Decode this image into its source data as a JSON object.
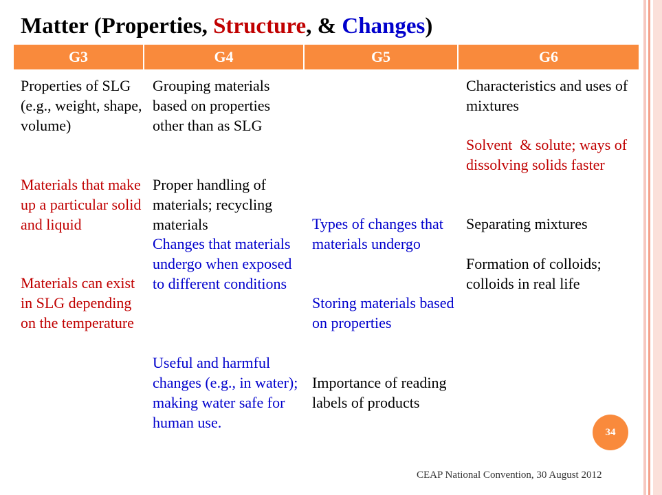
{
  "title": {
    "parts": [
      {
        "text": "Matter (Properties, ",
        "color": "#000000"
      },
      {
        "text": "Structure",
        "color": "#c00000"
      },
      {
        "text": ", & ",
        "color": "#000000"
      },
      {
        "text": "Changes",
        "color": "#0000cc"
      },
      {
        "text": ")",
        "color": "#000000"
      }
    ]
  },
  "table": {
    "headers": [
      "G3",
      "G4",
      "G5",
      "G6"
    ],
    "columns": [
      [
        {
          "text": "Properties of SLG (e.g., weight, shape, volume)",
          "color": "#000000"
        },
        {
          "text": "Materials that make up a particular solid and liquid",
          "color": "#c00000"
        },
        {
          "text": "Materials can exist in SLG depending on the temperature",
          "color": "#c00000"
        }
      ],
      [
        {
          "text": "Grouping materials based on properties other than as SLG",
          "color": "#000000"
        },
        {
          "text": "Proper handling of materials; recycling materials",
          "color": "#000000"
        },
        {
          "text": "Changes that materials undergo when exposed to different conditions",
          "color": "#0000cc"
        },
        {
          "text": "Useful and harmful changes (e.g., in water); making water safe for human use.",
          "color": "#0000cc"
        }
      ],
      [
        {
          "text": "Types of changes that materials undergo",
          "color": "#0000cc"
        },
        {
          "text": "Storing materials based on properties",
          "color": "#0000cc"
        },
        {
          "text": "Importance of reading labels of products",
          "color": "#000000"
        }
      ],
      [
        {
          "text": "Characteristics and uses of mixtures",
          "color": "#000000"
        },
        {
          "text": "Solvent  & solute; ways of dissolving solids faster",
          "color": "#c00000"
        },
        {
          "text": "Separating mixtures",
          "color": "#000000"
        },
        {
          "text": "Formation of colloids; colloids in real life",
          "color": "#000000"
        }
      ]
    ]
  },
  "page_number": "34",
  "footer": "CEAP National Convention, 30 August 2012"
}
